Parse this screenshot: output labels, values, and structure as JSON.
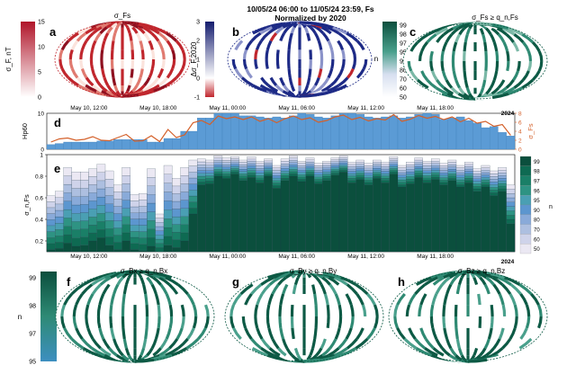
{
  "header": {
    "title": "10/05/24 06:00 to 11/05/24 23:59, Fs",
    "subtitle": "Normalized by 2020"
  },
  "palette": {
    "red": "#c0262d",
    "redlight": "#fbe3dc",
    "navy": "#1d2a86",
    "teal": "#0d5a45",
    "tealmid": "#2f8a73",
    "blue": "#5b9bd5",
    "orange": "#d4602a",
    "bg": "#ffffff"
  },
  "chart_data": [
    {
      "id": "a",
      "type": "heatmap",
      "panel_label": "a",
      "title": "σ_Fs",
      "colorbar": {
        "label": "σ_F, nT",
        "ticks": [
          "0",
          "5",
          "10",
          "15"
        ],
        "range": [
          0,
          15
        ],
        "colors": [
          "#ffffff",
          "#c0262d"
        ]
      }
    },
    {
      "id": "b",
      "type": "heatmap",
      "panel_label": "b",
      "title": "",
      "colorbar": {
        "label": "Δσ_F,2020",
        "ticks": [
          "-1",
          "0",
          "1",
          "2",
          "3"
        ],
        "range": [
          -1,
          3
        ],
        "colors": [
          "#c0262d",
          "#ffffff",
          "#1d2a86"
        ]
      }
    },
    {
      "id": "c",
      "type": "heatmap",
      "panel_label": "c",
      "title": "σ_Fs ≥ q_n,Fs",
      "colorbar": {
        "label": "n",
        "ticks": [
          "99",
          "98",
          "97",
          "95",
          "90",
          "80",
          "70",
          "60",
          "50"
        ],
        "colors": [
          "#ffffff",
          "#0d5a45"
        ]
      }
    },
    {
      "id": "d",
      "type": "bar",
      "panel_label": "d",
      "ylabel": "Hp60",
      "y2label": "σ_Fs",
      "yticks": [
        "0",
        "2",
        "4",
        "6",
        "8",
        "10"
      ],
      "ylim": [
        0,
        10
      ],
      "y2ticks": [
        "0",
        "2",
        "4",
        "6",
        "8"
      ],
      "y2lim": [
        0,
        8
      ],
      "xlabels": [
        "May 10, 12:00",
        "May 10, 18:00",
        "May 11, 00:00",
        "May 11, 06:00",
        "May 11, 12:00",
        "May 11, 18:00"
      ],
      "year": "2024",
      "series": [
        {
          "name": "Hp60",
          "kind": "bar",
          "values": [
            1.3,
            1.6,
            2.0,
            2.0,
            2.0,
            2.0,
            2.3,
            2.3,
            2.7,
            2.7,
            2.7,
            2.7,
            2.0,
            2.0,
            3.0,
            3.0,
            5.0,
            5.0,
            8.7,
            8.7,
            10.0,
            10.0,
            10.0,
            9.3,
            9.3,
            9.0,
            8.7,
            9.0,
            8.7,
            9.3,
            10.0,
            9.7,
            9.0,
            8.7,
            9.3,
            10.0,
            10.0,
            9.7,
            9.0,
            8.7,
            9.0,
            9.3,
            8.7,
            9.0,
            9.7,
            10.0,
            9.7,
            8.3,
            8.7,
            9.0,
            8.0,
            7.3,
            6.0,
            6.3,
            4.7,
            3.7
          ]
        },
        {
          "name": "σ_Fs",
          "kind": "line",
          "values": [
            1.6,
            2.3,
            2.5,
            2.0,
            2.2,
            2.8,
            2.0,
            1.9,
            2.6,
            3.3,
            1.8,
            1.9,
            3.0,
            1.7,
            4.4,
            2.6,
            3.2,
            5.9,
            6.4,
            5.5,
            7.4,
            6.8,
            7.2,
            6.6,
            7.2,
            6.2,
            6.8,
            5.9,
            6.8,
            7.4,
            6.6,
            7.0,
            6.0,
            6.4,
            7.2,
            7.6,
            6.6,
            7.1,
            6.3,
            6.8,
            6.5,
            7.7,
            6.2,
            6.7,
            7.5,
            6.9,
            7.3,
            6.6,
            7.2,
            6.1,
            6.9,
            5.8,
            6.2,
            5.1,
            5.5,
            3.1
          ]
        }
      ]
    },
    {
      "id": "e",
      "type": "bar",
      "panel_label": "e",
      "ylabel": "σ_n,Fs",
      "yticks": [
        "0.2",
        "0.4",
        "0.6",
        "0.8",
        "1"
      ],
      "ylim": [
        0.1,
        1.0
      ],
      "xlabels": [
        "May 10, 12:00",
        "May 10, 18:00",
        "May 11, 00:00",
        "May 11, 06:00",
        "May 11, 12:00",
        "May 11, 18:00"
      ],
      "year": "2024",
      "legend_title": "n",
      "categories": [
        "99",
        "98",
        "97",
        "96",
        "95",
        "90",
        "80",
        "70",
        "60",
        "50"
      ],
      "category_colors": [
        "#0b4f3d",
        "#0e6a52",
        "#1a7f67",
        "#2e9383",
        "#4a9fb3",
        "#5c96cf",
        "#89aad9",
        "#adbfe0",
        "#cfd3ea",
        "#ebe8f3"
      ],
      "top_values": [
        0.62,
        0.66,
        0.88,
        0.84,
        0.84,
        0.87,
        0.91,
        0.85,
        0.72,
        0.88,
        0.63,
        0.64,
        0.87,
        0.45,
        0.9,
        0.78,
        0.88,
        0.95,
        0.96,
        0.95,
        0.99,
        0.97,
        0.98,
        0.95,
        0.98,
        0.94,
        0.96,
        0.9,
        0.96,
        0.99,
        0.94,
        0.97,
        0.92,
        0.94,
        0.97,
        0.99,
        0.93,
        0.95,
        0.92,
        0.95,
        0.93,
        0.98,
        0.9,
        0.93,
        0.97,
        0.94,
        0.96,
        0.92,
        0.95,
        0.9,
        0.93,
        0.87,
        0.9,
        0.85,
        0.88,
        0.72
      ],
      "dark_values": [
        0.12,
        0.13,
        0.18,
        0.15,
        0.16,
        0.2,
        0.23,
        0.16,
        0.12,
        0.2,
        0.12,
        0.11,
        0.15,
        0.1,
        0.16,
        0.14,
        0.2,
        0.45,
        0.72,
        0.73,
        0.8,
        0.78,
        0.82,
        0.76,
        0.79,
        0.74,
        0.8,
        0.69,
        0.76,
        0.8,
        0.75,
        0.8,
        0.73,
        0.76,
        0.81,
        0.84,
        0.74,
        0.77,
        0.72,
        0.78,
        0.74,
        0.82,
        0.7,
        0.73,
        0.79,
        0.74,
        0.77,
        0.72,
        0.76,
        0.7,
        0.74,
        0.66,
        0.7,
        0.62,
        0.66,
        0.36
      ]
    },
    {
      "id": "f",
      "type": "heatmap",
      "panel_label": "f",
      "title": "σ_Bx ≥ q_n,Bx",
      "colorbar": {
        "label": "n",
        "ticks": [
          "99",
          "98",
          "97",
          "95"
        ],
        "colors": [
          "#3d8fc0",
          "#0d5a45"
        ]
      }
    },
    {
      "id": "g",
      "type": "heatmap",
      "panel_label": "g",
      "title": "σ_By ≥ q_n,By"
    },
    {
      "id": "h",
      "type": "heatmap",
      "panel_label": "h",
      "title": "σ_Bz ≥ q_n,Bz"
    }
  ]
}
